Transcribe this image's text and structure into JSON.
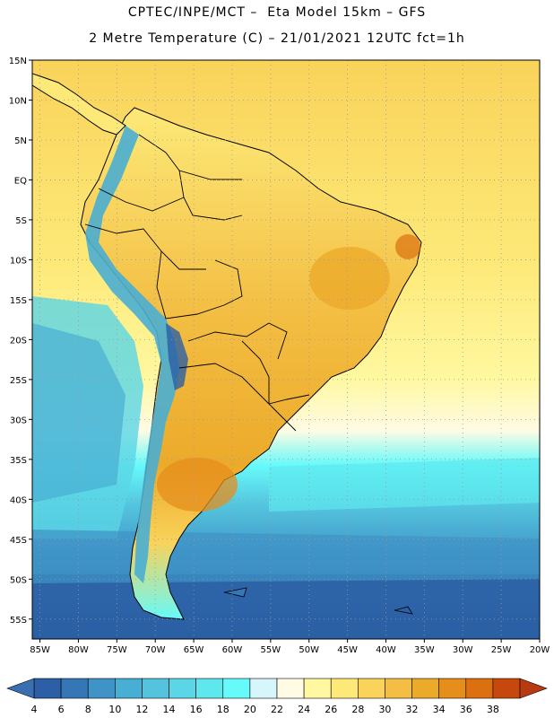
{
  "header": {
    "line1": "CPTEC/INPE/MCT –  Eta Model 15km – GFS",
    "line2": "2 Metre Temperature (C) – 21/01/2021 12UTC fct=1h"
  },
  "map": {
    "lat_labels": [
      "15N",
      "10N",
      "5N",
      "EQ",
      "5S",
      "10S",
      "15S",
      "20S",
      "25S",
      "30S",
      "35S",
      "40S",
      "45S",
      "50S",
      "55S"
    ],
    "lon_labels": [
      "85W",
      "80W",
      "75W",
      "70W",
      "65W",
      "60W",
      "55W",
      "50W",
      "45W",
      "40W",
      "35W",
      "30W",
      "25W",
      "20W"
    ],
    "lat_range": [
      15,
      -57.5
    ],
    "lon_range": [
      -86,
      -20
    ]
  },
  "colorbar": {
    "labels": [
      "4",
      "6",
      "8",
      "10",
      "12",
      "14",
      "16",
      "18",
      "20",
      "22",
      "24",
      "26",
      "28",
      "30",
      "32",
      "34",
      "36",
      "38"
    ],
    "low_color": "#3a6fb0",
    "high_color": "#b73a10",
    "colors": [
      "#2c5fa5",
      "#3577b6",
      "#3f93c6",
      "#49aed3",
      "#54c4de",
      "#5ad6e6",
      "#5ee8ee",
      "#66fafa",
      "#d6f6fb",
      "#fffbe4",
      "#fff8a0",
      "#fde978",
      "#f9d35a",
      "#f3be43",
      "#ecaa2a",
      "#e58e1c",
      "#dc6f10",
      "#c6480c"
    ]
  }
}
